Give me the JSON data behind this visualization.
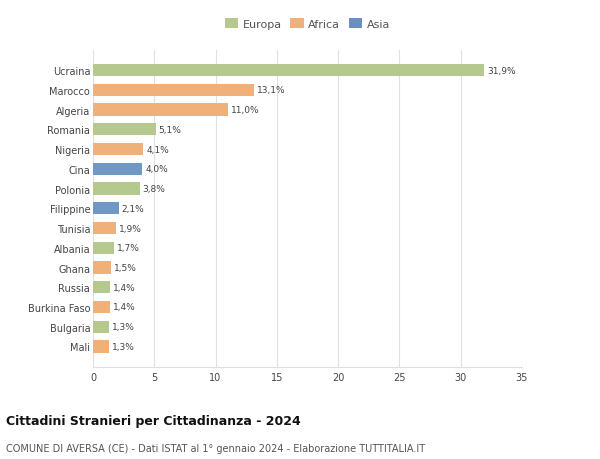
{
  "categories": [
    "Ucraina",
    "Marocco",
    "Algeria",
    "Romania",
    "Nigeria",
    "Cina",
    "Polonia",
    "Filippine",
    "Tunisia",
    "Albania",
    "Ghana",
    "Russia",
    "Burkina Faso",
    "Bulgaria",
    "Mali"
  ],
  "values": [
    31.9,
    13.1,
    11.0,
    5.1,
    4.1,
    4.0,
    3.8,
    2.1,
    1.9,
    1.7,
    1.5,
    1.4,
    1.4,
    1.3,
    1.3
  ],
  "colors": [
    "#b5c98e",
    "#f0b07a",
    "#f0b07a",
    "#b5c98e",
    "#f0b07a",
    "#7098c4",
    "#b5c98e",
    "#7098c4",
    "#f0b07a",
    "#b5c98e",
    "#f0b07a",
    "#b5c98e",
    "#f0b07a",
    "#b5c98e",
    "#f0b07a"
  ],
  "labels": [
    "31,9%",
    "13,1%",
    "11,0%",
    "5,1%",
    "4,1%",
    "4,0%",
    "3,8%",
    "2,1%",
    "1,9%",
    "1,7%",
    "1,5%",
    "1,4%",
    "1,4%",
    "1,3%",
    "1,3%"
  ],
  "legend": [
    {
      "label": "Europa",
      "color": "#b5c98e"
    },
    {
      "label": "Africa",
      "color": "#f0b07a"
    },
    {
      "label": "Asia",
      "color": "#6b8fc2"
    }
  ],
  "xlim": [
    0,
    35
  ],
  "xticks": [
    0,
    5,
    10,
    15,
    20,
    25,
    30,
    35
  ],
  "title": "Cittadini Stranieri per Cittadinanza - 2024",
  "subtitle": "COMUNE DI AVERSA (CE) - Dati ISTAT al 1° gennaio 2024 - Elaborazione TUTTITALIA.IT",
  "background_color": "#ffffff",
  "grid_color": "#e0e0e0"
}
